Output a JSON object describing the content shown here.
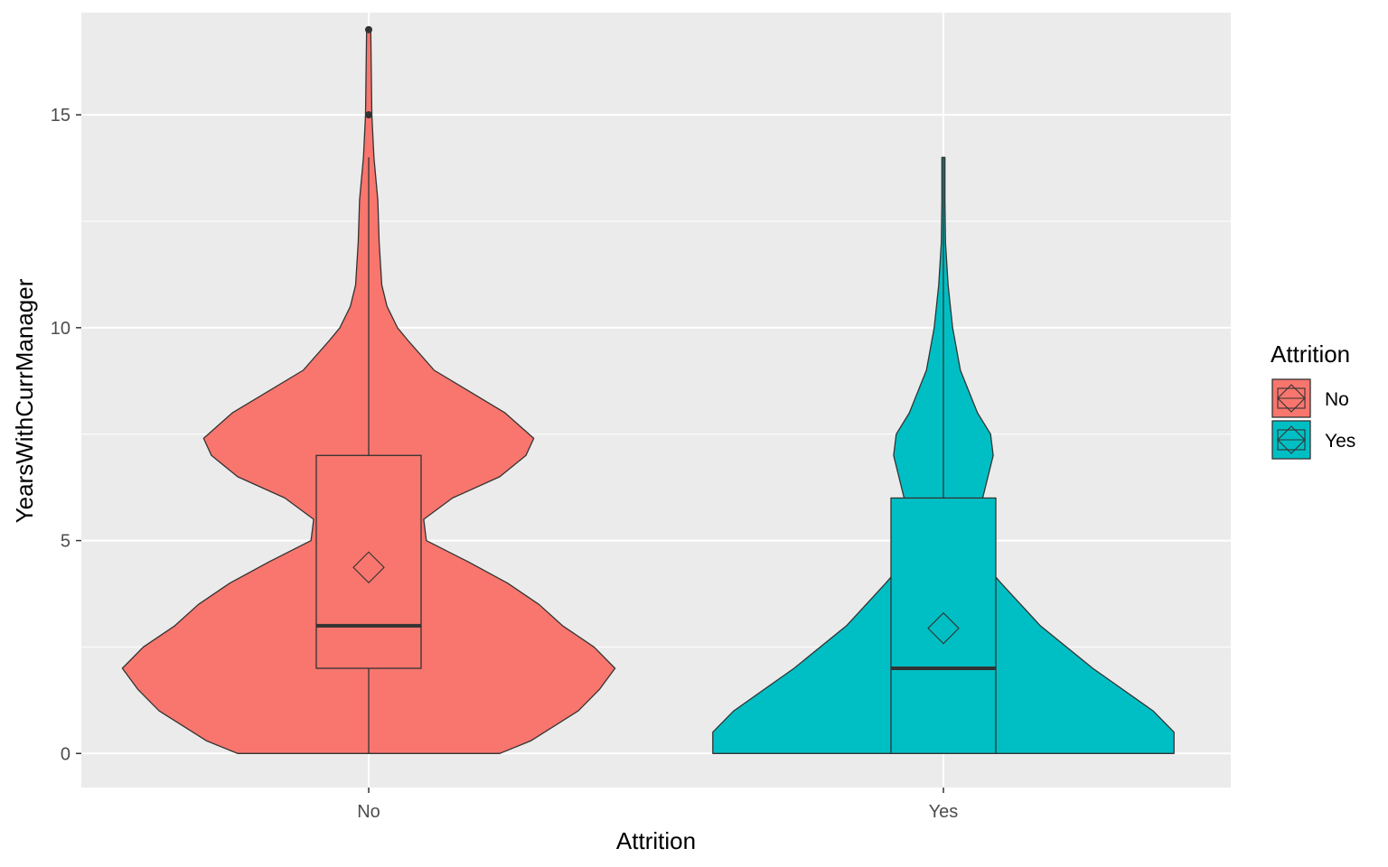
{
  "chart_data": {
    "type": "violin",
    "title": "",
    "xlabel": "Attrition",
    "ylabel": "YearsWithCurrManager",
    "categories": [
      "No",
      "Yes"
    ],
    "ylim": [
      -0.8,
      17.4
    ],
    "yticks": [
      0,
      5,
      10,
      15
    ],
    "ytick_labels": [
      "0",
      "5",
      "10",
      "15"
    ],
    "grid": true,
    "legend": {
      "title": "Attrition",
      "position": "right",
      "entries": [
        "No",
        "Yes"
      ]
    },
    "series": [
      {
        "category": "No",
        "color": "#F8766D",
        "box": {
          "min": 0,
          "q1": 2,
          "median": 3,
          "q3": 7,
          "max": 14
        },
        "mean": 4.37,
        "outliers": [
          15,
          17
        ],
        "density": [
          [
            0,
            0.5
          ],
          [
            0.3,
            0.62
          ],
          [
            1,
            0.8
          ],
          [
            1.5,
            0.88
          ],
          [
            2,
            0.94
          ],
          [
            2.5,
            0.86
          ],
          [
            3,
            0.74
          ],
          [
            3.5,
            0.65
          ],
          [
            4,
            0.53
          ],
          [
            4.5,
            0.38
          ],
          [
            5,
            0.22
          ],
          [
            5.5,
            0.21
          ],
          [
            6,
            0.32
          ],
          [
            6.5,
            0.5
          ],
          [
            7,
            0.6
          ],
          [
            7.4,
            0.63
          ],
          [
            8,
            0.52
          ],
          [
            9,
            0.25
          ],
          [
            9.7,
            0.15
          ],
          [
            10,
            0.11
          ],
          [
            10.5,
            0.07
          ],
          [
            11,
            0.05
          ],
          [
            12,
            0.04
          ],
          [
            13,
            0.035
          ],
          [
            14,
            0.02
          ],
          [
            15,
            0.012
          ],
          [
            16,
            0.01
          ],
          [
            17,
            0.008
          ]
        ]
      },
      {
        "category": "Yes",
        "color": "#00BFC4",
        "box": {
          "min": 0,
          "q1": 0,
          "median": 2,
          "q3": 6,
          "max": 14
        },
        "mean": 2.94,
        "outliers": [],
        "density": [
          [
            0,
            0.88
          ],
          [
            0.5,
            0.88
          ],
          [
            1,
            0.8
          ],
          [
            2,
            0.57
          ],
          [
            3,
            0.37
          ],
          [
            4,
            0.22
          ],
          [
            4.5,
            0.15
          ],
          [
            5,
            0.108
          ],
          [
            5.5,
            0.12
          ],
          [
            6,
            0.15
          ],
          [
            7,
            0.19
          ],
          [
            7.5,
            0.18
          ],
          [
            8,
            0.13
          ],
          [
            9,
            0.065
          ],
          [
            10,
            0.035
          ],
          [
            11,
            0.018
          ],
          [
            12,
            0.008
          ],
          [
            13,
            0.006
          ],
          [
            14,
            0.006
          ]
        ]
      }
    ]
  }
}
